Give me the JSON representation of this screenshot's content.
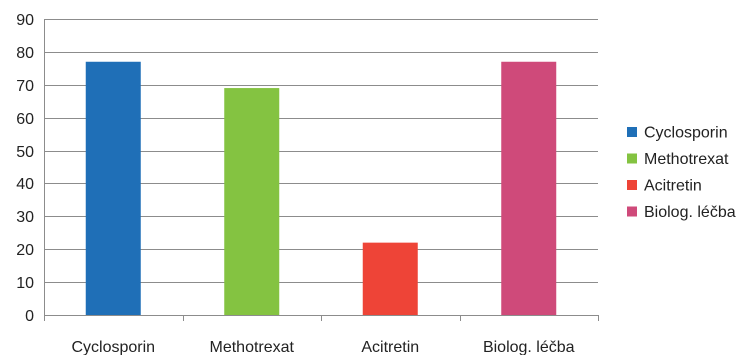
{
  "chart_data": {
    "type": "bar",
    "categories": [
      "Cyclosporin",
      "Methotrexat",
      "Acitretin",
      "Biolog. léčba"
    ],
    "series": [
      {
        "name": "Cyclosporin",
        "values": [
          77,
          null,
          null,
          null
        ],
        "color": "#1f6fb7"
      },
      {
        "name": "Methotrexat",
        "values": [
          null,
          69,
          null,
          null
        ],
        "color": "#84c341"
      },
      {
        "name": "Acitretin",
        "values": [
          null,
          null,
          22,
          null
        ],
        "color": "#ee4437"
      },
      {
        "name": "Biolog. léčba",
        "values": [
          null,
          null,
          null,
          77
        ],
        "color": "#cf4a7a"
      }
    ],
    "values": [
      77,
      69,
      22,
      77
    ],
    "y_ticks": [
      0,
      10,
      20,
      30,
      40,
      50,
      60,
      70,
      80,
      90
    ],
    "ylim": [
      0,
      90
    ],
    "grid": true,
    "legend_position": "right",
    "title": "",
    "xlabel": "",
    "ylabel": ""
  }
}
